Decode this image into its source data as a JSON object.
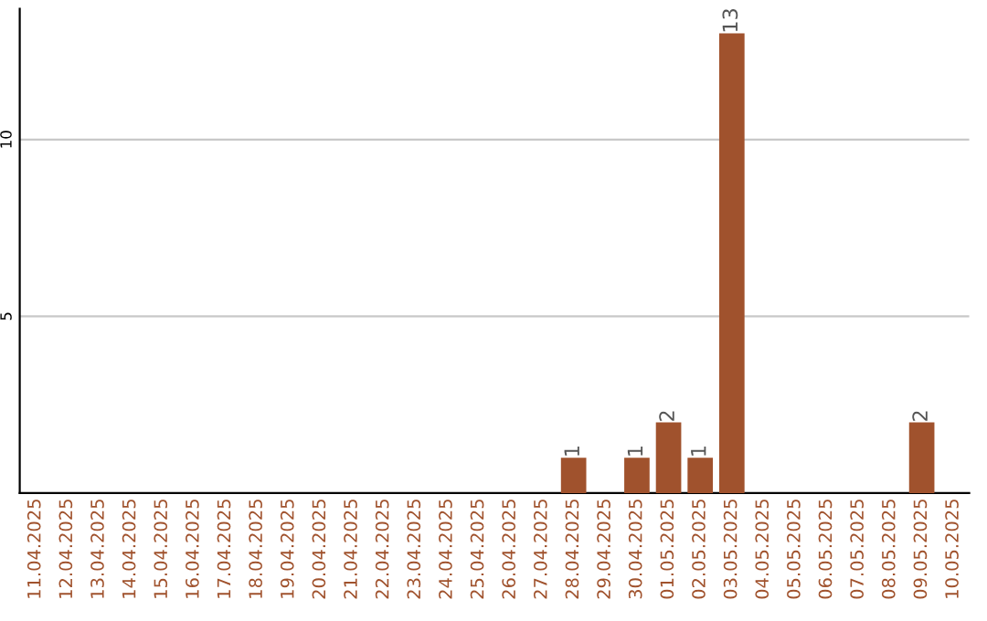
{
  "chart_data": {
    "type": "bar",
    "categories": [
      "11.04.2025",
      "12.04.2025",
      "13.04.2025",
      "14.04.2025",
      "15.04.2025",
      "16.04.2025",
      "17.04.2025",
      "18.04.2025",
      "19.04.2025",
      "20.04.2025",
      "21.04.2025",
      "22.04.2025",
      "23.04.2025",
      "24.04.2025",
      "25.04.2025",
      "26.04.2025",
      "27.04.2025",
      "28.04.2025",
      "29.04.2025",
      "30.04.2025",
      "01.05.2025",
      "02.05.2025",
      "03.05.2025",
      "04.05.2025",
      "05.05.2025",
      "06.05.2025",
      "07.05.2025",
      "08.05.2025",
      "09.05.2025",
      "10.05.2025"
    ],
    "values": [
      0,
      0,
      0,
      0,
      0,
      0,
      0,
      0,
      0,
      0,
      0,
      0,
      0,
      0,
      0,
      0,
      0,
      1,
      0,
      1,
      2,
      1,
      13,
      0,
      0,
      0,
      0,
      0,
      2,
      0
    ],
    "value_labels": [
      null,
      null,
      null,
      null,
      null,
      null,
      null,
      null,
      null,
      null,
      null,
      null,
      null,
      null,
      null,
      null,
      null,
      "1",
      null,
      "1",
      "2",
      "1",
      "13",
      null,
      null,
      null,
      null,
      null,
      "2",
      null
    ],
    "color": "#a0522d",
    "ylim": [
      0,
      13.7
    ],
    "yticks": [
      5,
      10
    ],
    "grid": "y",
    "legend": false
  }
}
